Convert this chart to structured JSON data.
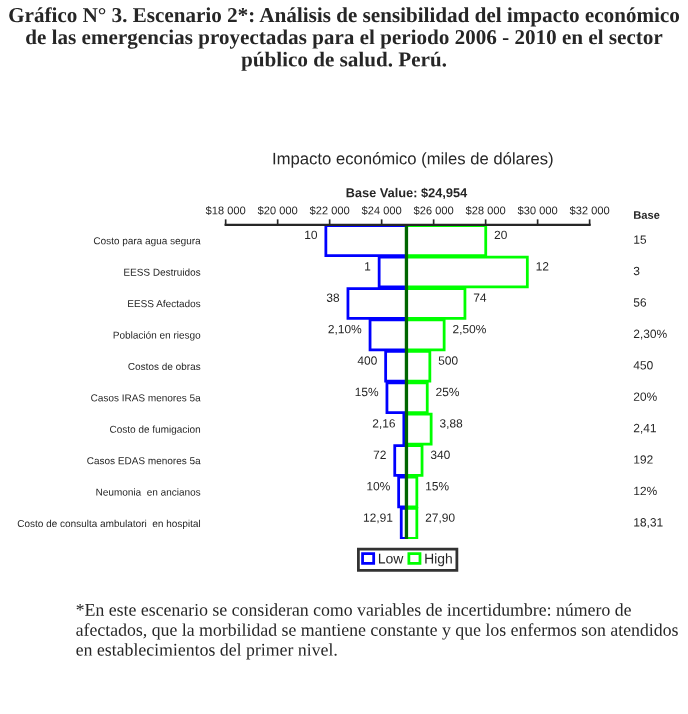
{
  "chart_data": {
    "type": "bar",
    "orientation": "horizontal",
    "title": "Gráfico N° 3. Escenario 2*: Análisis de sensibilidad del impacto económico de las emergencias proyectadas para el periodo 2006 - 2010 en el sector público de salud. Perú.",
    "subtitle": "Impacto económico (miles de dólares)",
    "categories": [
      "Costo para agua segura",
      "EESS Destruidos",
      "EESS Afectados",
      "Población en riesgo",
      "Costos de obras",
      "Casos IRAS menores 5a",
      "Costo de fumigacion",
      "Casos EDAS menores 5a",
      "Neumonia  en ancianos",
      "Costo de consulta ambulatori  en hospital"
    ],
    "series": [
      {
        "name": "Low",
        "color": "#0000ff",
        "base": [
          24954,
          24954,
          24954,
          24954,
          24954,
          24954,
          24954,
          24954,
          24954,
          24954
        ],
        "values": [
          -3100,
          -1050,
          -2250,
          -1400,
          -800,
          -750,
          -100,
          -450,
          -300,
          -200
        ]
      },
      {
        "name": "High",
        "color": "#00ff00",
        "base": [
          24954,
          24954,
          24954,
          24954,
          24954,
          24954,
          24954,
          24954,
          24954,
          24954
        ],
        "values": [
          3050,
          4650,
          2250,
          1450,
          900,
          800,
          950,
          600,
          400,
          400
        ]
      }
    ],
    "xlim": [
      18000,
      32000
    ],
    "xticks": [
      {
        "value": 18000,
        "label": "$18 000"
      },
      {
        "value": 20000,
        "label": "$20 000"
      },
      {
        "value": 22000,
        "label": "$22 000"
      },
      {
        "value": 24000,
        "label": "$24 000"
      },
      {
        "value": 26000,
        "label": "$26 000"
      },
      {
        "value": 28000,
        "label": "$28 000"
      },
      {
        "value": 30000,
        "label": "$30 000"
      },
      {
        "value": 32000,
        "label": "$32 000"
      }
    ],
    "ref_lines": [
      {
        "axis": "x",
        "value": 24954,
        "label": "Base Value: $24,954",
        "color": "#006600"
      }
    ],
    "annotations": [
      "Base",
      "15",
      "3",
      "56",
      "2,30%",
      "450",
      "20%",
      "2,41",
      "192",
      "12%",
      "18,31",
      "10",
      "1",
      "38",
      "2,10%",
      "400",
      "15%",
      "2,16",
      "72",
      "10%",
      "12,91",
      "20",
      "12",
      "74",
      "2,50%",
      "500",
      "25%",
      "3,88",
      "340",
      "15%",
      "27,90",
      "*En este escenario se consideran como variables de incertidumbre: número de afectados, que la morbilidad se mantiene constante y que los enfermos son atendidos en establecimientos del primer nivel."
    ],
    "grid": false,
    "legend": "bottom"
  }
}
